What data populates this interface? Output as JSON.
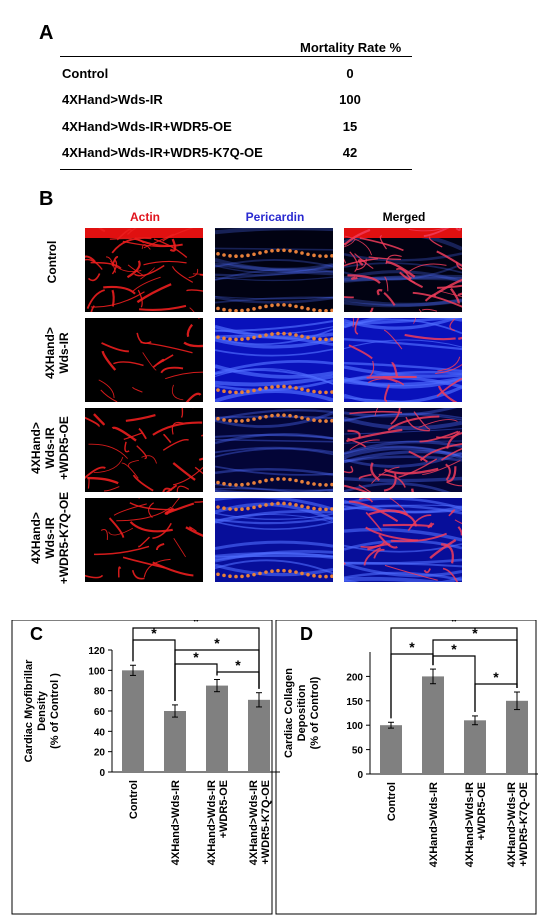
{
  "panel_a": {
    "letter": "A",
    "header": "Mortality Rate %",
    "rows": [
      {
        "label": "Control",
        "value": "0"
      },
      {
        "label": "4XHand>Wds-IR",
        "value": "100"
      },
      {
        "label": "4XHand>Wds-IR+WDR5-OE",
        "value": "15"
      },
      {
        "label": "4XHand>Wds-IR+WDR5-K7Q-OE",
        "value": "42"
      }
    ]
  },
  "panel_b": {
    "letter": "B",
    "columns": [
      {
        "label": "Actin",
        "color": "#e0141e"
      },
      {
        "label": "Pericardin",
        "color": "#2a2ad0"
      },
      {
        "label": "Merged",
        "color": "#000000"
      }
    ],
    "rows": [
      {
        "label_lines": [
          "Control"
        ]
      },
      {
        "label_lines": [
          "4XHand>",
          "Wds-IR"
        ]
      },
      {
        "label_lines": [
          "4XHand>",
          "Wds-IR",
          "+WDR5-OE"
        ]
      },
      {
        "label_lines": [
          "4XHand>",
          "Wds-IR",
          "+WDR5-K7Q-OE"
        ]
      }
    ]
  },
  "chart_data": [
    {
      "panel": "C",
      "type": "bar",
      "categories": [
        "Control",
        "4XHand>Wds-IR",
        "4XHand>Wds-IR\n+WDR5-OE",
        "4XHand>Wds-IR\n+WDR5-K7Q-OE"
      ],
      "values": [
        100,
        60,
        85,
        71
      ],
      "errors": [
        5,
        6,
        6,
        7
      ],
      "ylabel_lines": [
        "Cardiac Myofibrillar",
        "Density",
        "(% of Control )"
      ],
      "ylim": [
        0,
        120
      ],
      "yticks": [
        "0",
        "20",
        "40",
        "60",
        "80",
        "100",
        "120"
      ],
      "significance": [
        {
          "pair": [
            0,
            1
          ],
          "label": "*"
        },
        {
          "pair": [
            0,
            3
          ],
          "label": "*"
        },
        {
          "pair": [
            1,
            2
          ],
          "label": "*"
        },
        {
          "pair": [
            1,
            3
          ],
          "label": "*"
        },
        {
          "pair": [
            2,
            3
          ],
          "label": "*"
        }
      ],
      "bar_color": "#808080"
    },
    {
      "panel": "D",
      "type": "bar",
      "categories": [
        "Control",
        "4XHand>Wds-IR",
        "4XHand>Wds-IR\n+WDR5-OE",
        "4XHand>Wds-IR\n+WDR5-K7Q-OE"
      ],
      "values": [
        100,
        200,
        110,
        150
      ],
      "errors": [
        6,
        15,
        9,
        18
      ],
      "ylabel_lines": [
        "Cardiac Collagen",
        "Deposition",
        "(% of Control)"
      ],
      "ylim": [
        0,
        250
      ],
      "yticks": [
        "0",
        "50",
        "100",
        "150",
        "200"
      ],
      "significance": [
        {
          "pair": [
            0,
            1
          ],
          "label": "*"
        },
        {
          "pair": [
            0,
            3
          ],
          "label": "*"
        },
        {
          "pair": [
            1,
            2
          ],
          "label": "*"
        },
        {
          "pair": [
            1,
            3
          ],
          "label": "*"
        },
        {
          "pair": [
            2,
            3
          ],
          "label": "*"
        }
      ],
      "bar_color": "#808080"
    }
  ]
}
